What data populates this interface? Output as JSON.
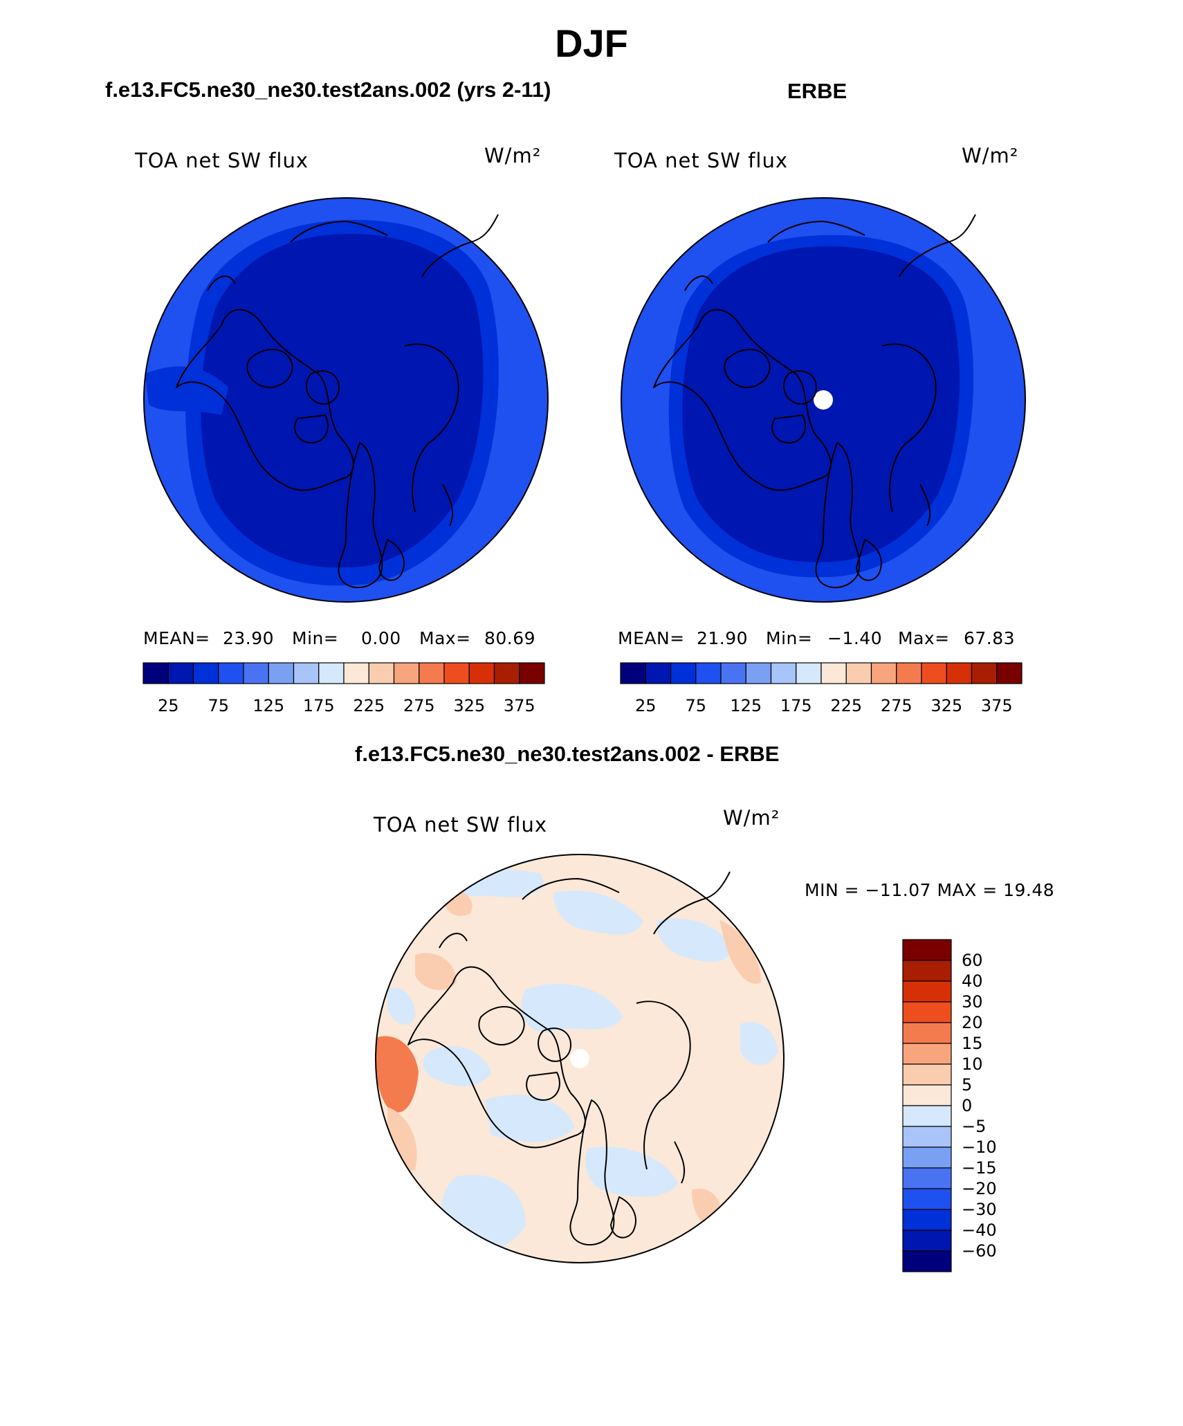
{
  "page_title": "DJF",
  "panels": {
    "model": {
      "case_title": "f.e13.FC5.ne30_ne30.test2ans.002 (yrs 2-11)",
      "variable": "TOA net SW flux",
      "units": "W/m²",
      "mean_label": "MEAN=",
      "mean": "23.90",
      "min_label": "Min=",
      "min": "0.00",
      "max_label": "Max=",
      "max": "80.69"
    },
    "obs": {
      "case_title": "ERBE",
      "variable": "TOA net SW flux",
      "units": "W/m²",
      "mean_label": "MEAN=",
      "mean": "21.90",
      "min_label": "Min=",
      "min": "−1.40",
      "max_label": "Max=",
      "max": "67.83"
    },
    "diff": {
      "case_title": "f.e13.FC5.ne30_ne30.test2ans.002 - ERBE",
      "variable": "TOA net SW flux",
      "units": "W/m²",
      "minmax_text": "MIN = −11.07  MAX =   19.48"
    }
  },
  "chart_data": [
    {
      "type": "heatmap",
      "title": "f.e13.FC5.ne30_ne30.test2ans.002 (yrs 2-11)",
      "variable": "TOA net SW flux",
      "units": "W/m²",
      "projection": "polar stereographic, north pole",
      "stats": {
        "mean": 23.9,
        "min": 0.0,
        "max": 80.69
      },
      "colorbar": {
        "orientation": "horizontal",
        "tick_labels": [
          "25",
          "75",
          "125",
          "175",
          "225",
          "275",
          "325",
          "375"
        ],
        "colors": [
          "#00007d",
          "#0016b0",
          "#0030d8",
          "#1f50f0",
          "#4a73f4",
          "#7aa0f4",
          "#a8c4f8",
          "#d6e8fb",
          "#fbe8d8",
          "#fbcdb0",
          "#f8a57e",
          "#f47b4e",
          "#ee4e1e",
          "#d83006",
          "#a81e02",
          "#7a0000"
        ]
      },
      "field_levels": {
        "outer_ring": 75,
        "mid_ring": 50,
        "inner": 25
      }
    },
    {
      "type": "heatmap",
      "title": "ERBE",
      "variable": "TOA net SW flux",
      "units": "W/m²",
      "projection": "polar stereographic, north pole",
      "stats": {
        "mean": 21.9,
        "min": -1.4,
        "max": 67.83
      },
      "colorbar": {
        "orientation": "horizontal",
        "tick_labels": [
          "25",
          "75",
          "125",
          "175",
          "225",
          "275",
          "325",
          "375"
        ],
        "colors": [
          "#00007d",
          "#0016b0",
          "#0030d8",
          "#1f50f0",
          "#4a73f4",
          "#7aa0f4",
          "#a8c4f8",
          "#d6e8fb",
          "#fbe8d8",
          "#fbcdb0",
          "#f8a57e",
          "#f47b4e",
          "#ee4e1e",
          "#d83006",
          "#a81e02",
          "#7a0000"
        ]
      },
      "field_levels": {
        "outer_ring": 75,
        "mid_ring": 50,
        "inner": 25
      },
      "missing_pole": true
    },
    {
      "type": "heatmap",
      "title": "f.e13.FC5.ne30_ne30.test2ans.002 - ERBE",
      "variable": "TOA net SW flux",
      "units": "W/m²",
      "projection": "polar stereographic, north pole",
      "stats": {
        "min": -11.07,
        "max": 19.48
      },
      "colorbar": {
        "orientation": "vertical",
        "tick_labels": [
          "60",
          "40",
          "30",
          "20",
          "15",
          "10",
          "5",
          "0",
          "−5",
          "−10",
          "−15",
          "−20",
          "−30",
          "−40",
          "−60"
        ],
        "colors": [
          "#7a0000",
          "#a81e02",
          "#d83006",
          "#ee4e1e",
          "#f47b4e",
          "#f8a57e",
          "#fbcdb0",
          "#fbe8d8",
          "#d6e8fb",
          "#a8c4f8",
          "#7aa0f4",
          "#4a73f4",
          "#1f50f0",
          "#0030d8",
          "#0016b0",
          "#00007d"
        ]
      },
      "background_color": "#fbe8d8",
      "negative_patch_color": "#d6e8fb",
      "positive_patch_colors": [
        "#fbcdb0",
        "#f8a57e",
        "#f47b4e"
      ],
      "missing_pole": true
    }
  ]
}
